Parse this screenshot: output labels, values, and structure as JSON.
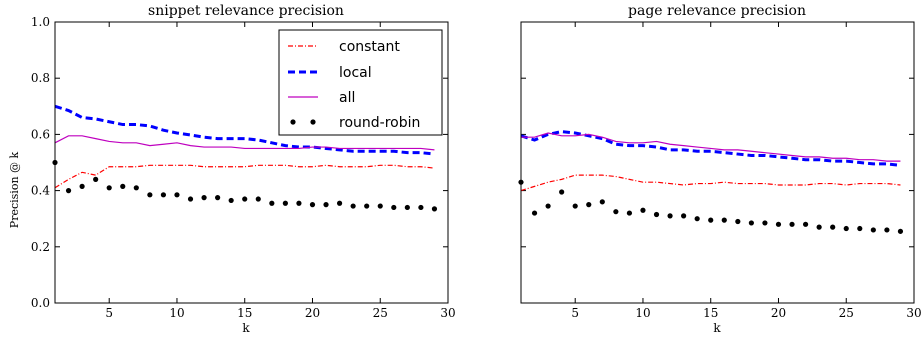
{
  "chart_data": [
    {
      "type": "line",
      "title": "snippet relevance precision",
      "xlabel": "k",
      "ylabel": "Precision @ k",
      "xlim": [
        1,
        30
      ],
      "ylim": [
        0.0,
        1.0
      ],
      "xticks": [
        "5",
        "10",
        "15",
        "20",
        "25",
        "30"
      ],
      "xtick_values": [
        5,
        10,
        15,
        20,
        25,
        30
      ],
      "yticks": [
        "0.0",
        "0.2",
        "0.4",
        "0.6",
        "0.8",
        "1.0"
      ],
      "ytick_values": [
        0.0,
        0.2,
        0.4,
        0.6,
        0.8,
        1.0
      ],
      "grid": false,
      "legend": "top-right",
      "x": [
        1,
        2,
        3,
        4,
        5,
        6,
        7,
        8,
        9,
        10,
        11,
        12,
        13,
        14,
        15,
        16,
        17,
        18,
        19,
        20,
        21,
        22,
        23,
        24,
        25,
        26,
        27,
        28,
        29
      ],
      "series": [
        {
          "name": "constant",
          "style": "dashdot",
          "color": "#ff0000",
          "values": [
            0.41,
            0.44,
            0.465,
            0.455,
            0.485,
            0.485,
            0.485,
            0.49,
            0.49,
            0.49,
            0.49,
            0.485,
            0.485,
            0.485,
            0.485,
            0.49,
            0.49,
            0.49,
            0.485,
            0.485,
            0.49,
            0.485,
            0.485,
            0.485,
            0.49,
            0.49,
            0.485,
            0.485,
            0.48
          ]
        },
        {
          "name": "local",
          "style": "dashed",
          "color": "#0000ff",
          "values": [
            0.7,
            0.685,
            0.66,
            0.655,
            0.645,
            0.635,
            0.635,
            0.63,
            0.615,
            0.605,
            0.598,
            0.59,
            0.585,
            0.585,
            0.585,
            0.58,
            0.57,
            0.56,
            0.555,
            0.555,
            0.55,
            0.545,
            0.54,
            0.54,
            0.54,
            0.54,
            0.535,
            0.535,
            0.53
          ]
        },
        {
          "name": "all",
          "style": "solid",
          "color": "#bf00bf",
          "values": [
            0.57,
            0.595,
            0.595,
            0.585,
            0.575,
            0.57,
            0.57,
            0.56,
            0.565,
            0.57,
            0.56,
            0.555,
            0.555,
            0.555,
            0.55,
            0.55,
            0.55,
            0.55,
            0.55,
            0.555,
            0.555,
            0.55,
            0.55,
            0.55,
            0.55,
            0.55,
            0.55,
            0.55,
            0.545
          ]
        },
        {
          "name": "round-robin",
          "style": "dots",
          "color": "#000000",
          "values": [
            0.5,
            0.4,
            0.415,
            0.44,
            0.41,
            0.415,
            0.41,
            0.385,
            0.385,
            0.385,
            0.37,
            0.375,
            0.375,
            0.365,
            0.37,
            0.37,
            0.355,
            0.355,
            0.355,
            0.35,
            0.35,
            0.355,
            0.345,
            0.345,
            0.345,
            0.34,
            0.34,
            0.34,
            0.335
          ]
        }
      ]
    },
    {
      "type": "line",
      "title": "page relevance precision",
      "xlabel": "k",
      "ylabel": "",
      "xlim": [
        1,
        30
      ],
      "ylim": [
        0.0,
        1.0
      ],
      "xticks": [
        "5",
        "10",
        "15",
        "20",
        "25",
        "30"
      ],
      "xtick_values": [
        5,
        10,
        15,
        20,
        25,
        30
      ],
      "yticks": [],
      "ytick_values": [
        0.0,
        0.2,
        0.4,
        0.6,
        0.8,
        1.0
      ],
      "grid": false,
      "x": [
        1,
        2,
        3,
        4,
        5,
        6,
        7,
        8,
        9,
        10,
        11,
        12,
        13,
        14,
        15,
        16,
        17,
        18,
        19,
        20,
        21,
        22,
        23,
        24,
        25,
        26,
        27,
        28,
        29
      ],
      "series": [
        {
          "name": "constant",
          "style": "dashdot",
          "color": "#ff0000",
          "values": [
            0.4,
            0.415,
            0.43,
            0.44,
            0.455,
            0.455,
            0.455,
            0.45,
            0.44,
            0.43,
            0.43,
            0.425,
            0.42,
            0.425,
            0.425,
            0.43,
            0.425,
            0.425,
            0.425,
            0.42,
            0.42,
            0.42,
            0.425,
            0.425,
            0.42,
            0.425,
            0.425,
            0.425,
            0.42
          ]
        },
        {
          "name": "local",
          "style": "dashed",
          "color": "#0000ff",
          "values": [
            0.595,
            0.58,
            0.6,
            0.61,
            0.605,
            0.595,
            0.585,
            0.565,
            0.56,
            0.56,
            0.555,
            0.545,
            0.545,
            0.54,
            0.54,
            0.535,
            0.53,
            0.525,
            0.525,
            0.52,
            0.515,
            0.51,
            0.51,
            0.505,
            0.505,
            0.5,
            0.495,
            0.495,
            0.49
          ]
        },
        {
          "name": "all",
          "style": "solid",
          "color": "#bf00bf",
          "values": [
            0.59,
            0.59,
            0.605,
            0.595,
            0.595,
            0.6,
            0.59,
            0.575,
            0.57,
            0.57,
            0.575,
            0.565,
            0.56,
            0.555,
            0.55,
            0.545,
            0.545,
            0.54,
            0.535,
            0.53,
            0.525,
            0.52,
            0.52,
            0.515,
            0.515,
            0.51,
            0.51,
            0.505,
            0.505
          ]
        },
        {
          "name": "round-robin",
          "style": "dots",
          "color": "#000000",
          "values": [
            0.43,
            0.32,
            0.345,
            0.395,
            0.345,
            0.35,
            0.36,
            0.325,
            0.32,
            0.33,
            0.315,
            0.31,
            0.31,
            0.3,
            0.295,
            0.295,
            0.29,
            0.285,
            0.285,
            0.28,
            0.28,
            0.28,
            0.27,
            0.27,
            0.265,
            0.265,
            0.26,
            0.26,
            0.255
          ]
        }
      ]
    }
  ]
}
